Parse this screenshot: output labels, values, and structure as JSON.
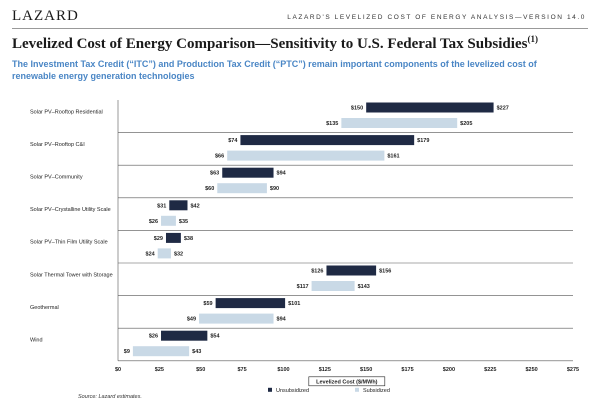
{
  "header": {
    "brand": "LAZARD",
    "report_title": "LAZARD'S LEVELIZED COST OF ENERGY ANALYSIS—VERSION 14.0"
  },
  "page": {
    "title": "Levelized Cost of Energy Comparison—Sensitivity to U.S. Federal Tax Subsidies",
    "title_footnote": "(1)",
    "subtitle": "The Investment Tax Credit (“ITC”) and Production Tax Credit (“PTC”) remain important components of the levelized cost of renewable energy generation technologies",
    "source": "Source:   Lazard estimates."
  },
  "colors": {
    "unsubsidized": "#1f2a44",
    "subsidized": "#c9d9e6",
    "axis": "#777777",
    "separator": "#555555"
  },
  "chart_data": {
    "type": "bar",
    "orientation": "horizontal-floating-range",
    "categories": [
      "Solar PV–Rooftop Residential",
      "Solar PV–Rooftop C&I",
      "Solar PV–Community",
      "Solar PV–Crystalline Utility Scale",
      "Solar PV–Thin Film Utility Scale",
      "Solar Thermal Tower with Storage",
      "Geothermal",
      "Wind"
    ],
    "series": [
      {
        "name": "Unsubsidized",
        "low": [
          150,
          74,
          63,
          31,
          29,
          126,
          59,
          26
        ],
        "high": [
          227,
          179,
          94,
          42,
          38,
          156,
          101,
          54
        ],
        "low_labels": [
          "$150",
          "$74",
          "$63",
          "$31",
          "$29",
          "$126",
          "$59",
          "$26"
        ],
        "high_labels": [
          "$227",
          "$179",
          "$94",
          "$42",
          "$38",
          "$156",
          "$101",
          "$54"
        ]
      },
      {
        "name": "Subsidized",
        "low": [
          135,
          66,
          60,
          26,
          24,
          117,
          49,
          9
        ],
        "high": [
          205,
          161,
          90,
          35,
          32,
          143,
          94,
          43
        ],
        "low_labels": [
          "$135",
          "$66",
          "$60",
          "$26",
          "$24",
          "$117",
          "$49",
          "$9"
        ],
        "high_labels": [
          "$205",
          "$161",
          "$90",
          "$35",
          "$32",
          "$143",
          "$94",
          "$43"
        ]
      }
    ],
    "xlabel": "Levelized Cost ($/MWh)",
    "xlim": [
      0,
      275
    ],
    "xticks": [
      0,
      25,
      50,
      75,
      100,
      125,
      150,
      175,
      200,
      225,
      250,
      275
    ],
    "xtick_labels": [
      "$0",
      "$25",
      "$50",
      "$75",
      "$100",
      "$125",
      "$150",
      "$175",
      "$200",
      "$225",
      "$250",
      "$275"
    ],
    "grid": false,
    "legend_position": "bottom-center"
  }
}
